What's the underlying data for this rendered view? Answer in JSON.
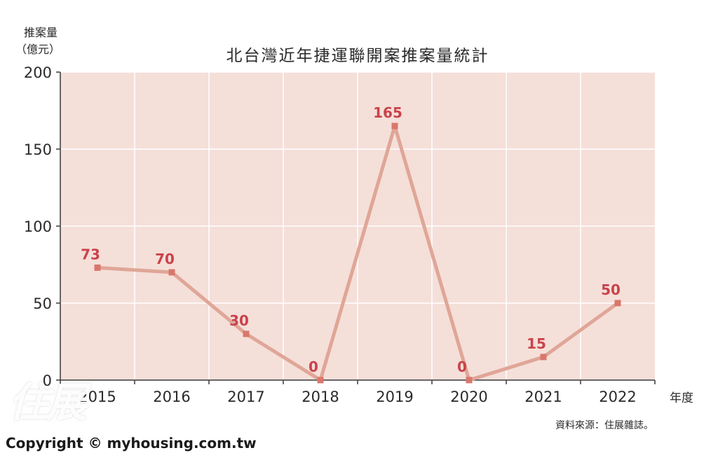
{
  "chart_data": {
    "type": "line",
    "title": "北台灣近年捷運聯開案推案量統計",
    "ylabel_line1": "推案量",
    "ylabel_line2": "（億元）",
    "xlabel": "年度",
    "categories": [
      "2015",
      "2016",
      "2017",
      "2018",
      "2019",
      "2020",
      "2021",
      "2022"
    ],
    "values": [
      73,
      70,
      30,
      0,
      165,
      0,
      15,
      50
    ],
    "ylim": [
      0,
      200
    ],
    "yticks": [
      0,
      50,
      100,
      150,
      200
    ],
    "grid": true,
    "colors": {
      "plot_bg": "#f5dfd9",
      "line": "#dfa697",
      "marker": "#d9776b",
      "data_label": "#c9434b",
      "grid": "#ffffff"
    }
  },
  "source": "資料來源：住展雜誌。",
  "copyright": "Copyright © myhousing.com.tw",
  "watermark": "住展"
}
